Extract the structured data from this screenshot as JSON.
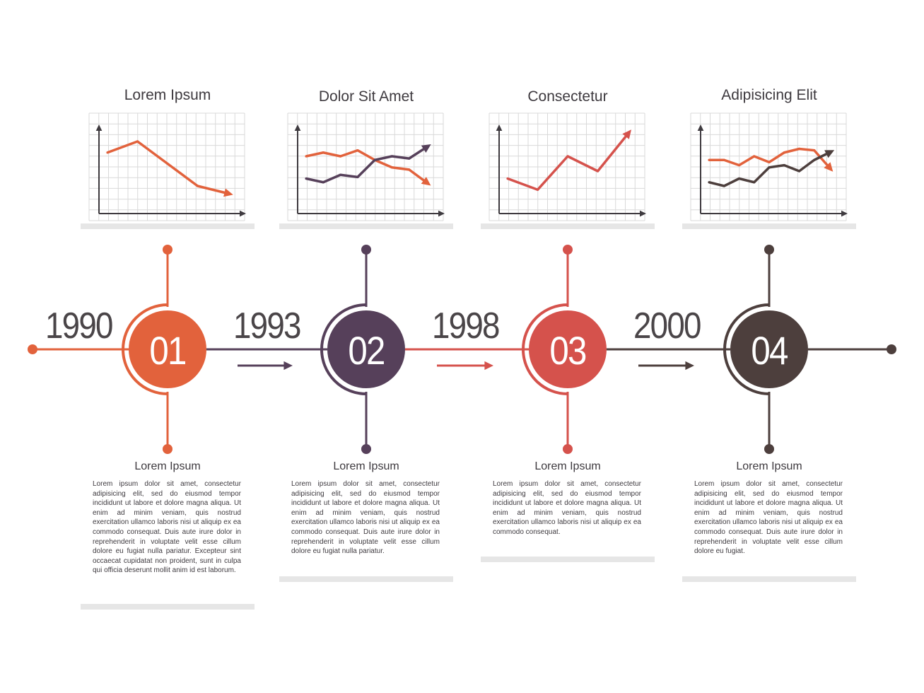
{
  "colors": {
    "orange": "#e2623c",
    "purple": "#56405a",
    "red": "#d5524c",
    "brown": "#4d3f3d",
    "grid": "#d9d9d9",
    "axis": "#3e3a3f",
    "shelf": "#e6e6e6"
  },
  "steps": [
    {
      "number": "01",
      "year": "1990",
      "color": "orange",
      "chart_title": "Lorem Ipsum",
      "desc_title": "Lorem Ipsum",
      "desc_body": "Lorem ipsum dolor sit amet, consectetur adipisicing elit, sed do eiusmod tempor incididunt ut labore et dolore magna aliqua. Ut enim ad minim veniam, quis nostrud exercitation ullamco laboris nisi ut aliquip ex ea commodo consequat. Duis aute irure dolor in reprehenderit in voluptate velit esse cillum dolore eu fugiat nulla pariatur. Excepteur sint occaecat cupidatat non proident, sunt in culpa qui officia deserunt mollit anim id est laborum."
    },
    {
      "number": "02",
      "year": "1993",
      "color": "purple",
      "chart_title": "Dolor Sit Amet",
      "desc_title": "Lorem Ipsum",
      "desc_body": "Lorem ipsum dolor sit amet, consectetur adipisicing elit, sed do eiusmod tempor incididunt ut labore et dolore magna aliqua. Ut enim ad minim veniam, quis nostrud exercitation ullamco laboris nisi ut aliquip ex ea commodo consequat. Duis aute irure dolor in reprehenderit in voluptate velit esse cillum dolore eu fugiat nulla pariatur."
    },
    {
      "number": "03",
      "year": "1998",
      "color": "red",
      "chart_title": "Consectetur",
      "desc_title": "Lorem Ipsum",
      "desc_body": "Lorem ipsum dolor sit amet, consectetur adipisicing elit, sed do eiusmod tempor incididunt ut labore et dolore magna aliqua. Ut enim ad minim veniam, quis nostrud exercitation ullamco laboris nisi ut aliquip ex ea commodo consequat."
    },
    {
      "number": "04",
      "year": "2000",
      "color": "brown",
      "chart_title": "Adipisicing Elit",
      "desc_title": "Lorem Ipsum",
      "desc_body": "Lorem ipsum dolor sit amet, consectetur adipisicing elit, sed do eiusmod tempor incididunt ut labore et dolore magna aliqua. Ut enim ad minim veniam, quis nostrud exercitation ullamco laboris nisi ut aliquip ex ea commodo consequat. Duis aute irure dolor in reprehenderit in voluptate velit esse cillum dolore eu fugiat."
    }
  ],
  "chart_data": [
    {
      "type": "line",
      "title": "Lorem Ipsum",
      "x": [
        0,
        1,
        2,
        3,
        4
      ],
      "series": [
        {
          "color": "orange",
          "values": [
            6.5,
            8,
            5,
            2,
            1
          ]
        }
      ]
    },
    {
      "type": "line",
      "title": "Dolor Sit Amet",
      "x": [
        0,
        1,
        2,
        3,
        4,
        5,
        6,
        7
      ],
      "series": [
        {
          "color": "orange",
          "values": [
            6,
            6.5,
            6,
            6.8,
            5.5,
            4.5,
            4.2,
            2.5
          ]
        },
        {
          "color": "purple",
          "values": [
            3,
            2.5,
            3.5,
            3.2,
            5.5,
            6,
            5.7,
            7.2
          ]
        }
      ]
    },
    {
      "type": "line",
      "title": "Consectetur",
      "x": [
        0,
        1,
        2,
        3,
        4
      ],
      "series": [
        {
          "color": "red",
          "values": [
            3,
            1.5,
            6,
            4,
            9
          ]
        }
      ]
    },
    {
      "type": "line",
      "title": "Adipisicing Elit",
      "x": [
        0,
        1,
        2,
        3,
        4,
        5,
        6,
        7,
        8
      ],
      "series": [
        {
          "color": "orange",
          "values": [
            5.5,
            5.5,
            4.8,
            6,
            5.2,
            6.5,
            7,
            6.8,
            4.5
          ]
        },
        {
          "color": "brown",
          "values": [
            2.5,
            2,
            3,
            2.5,
            4.5,
            4.8,
            4,
            5.5,
            6.5
          ]
        }
      ]
    }
  ]
}
